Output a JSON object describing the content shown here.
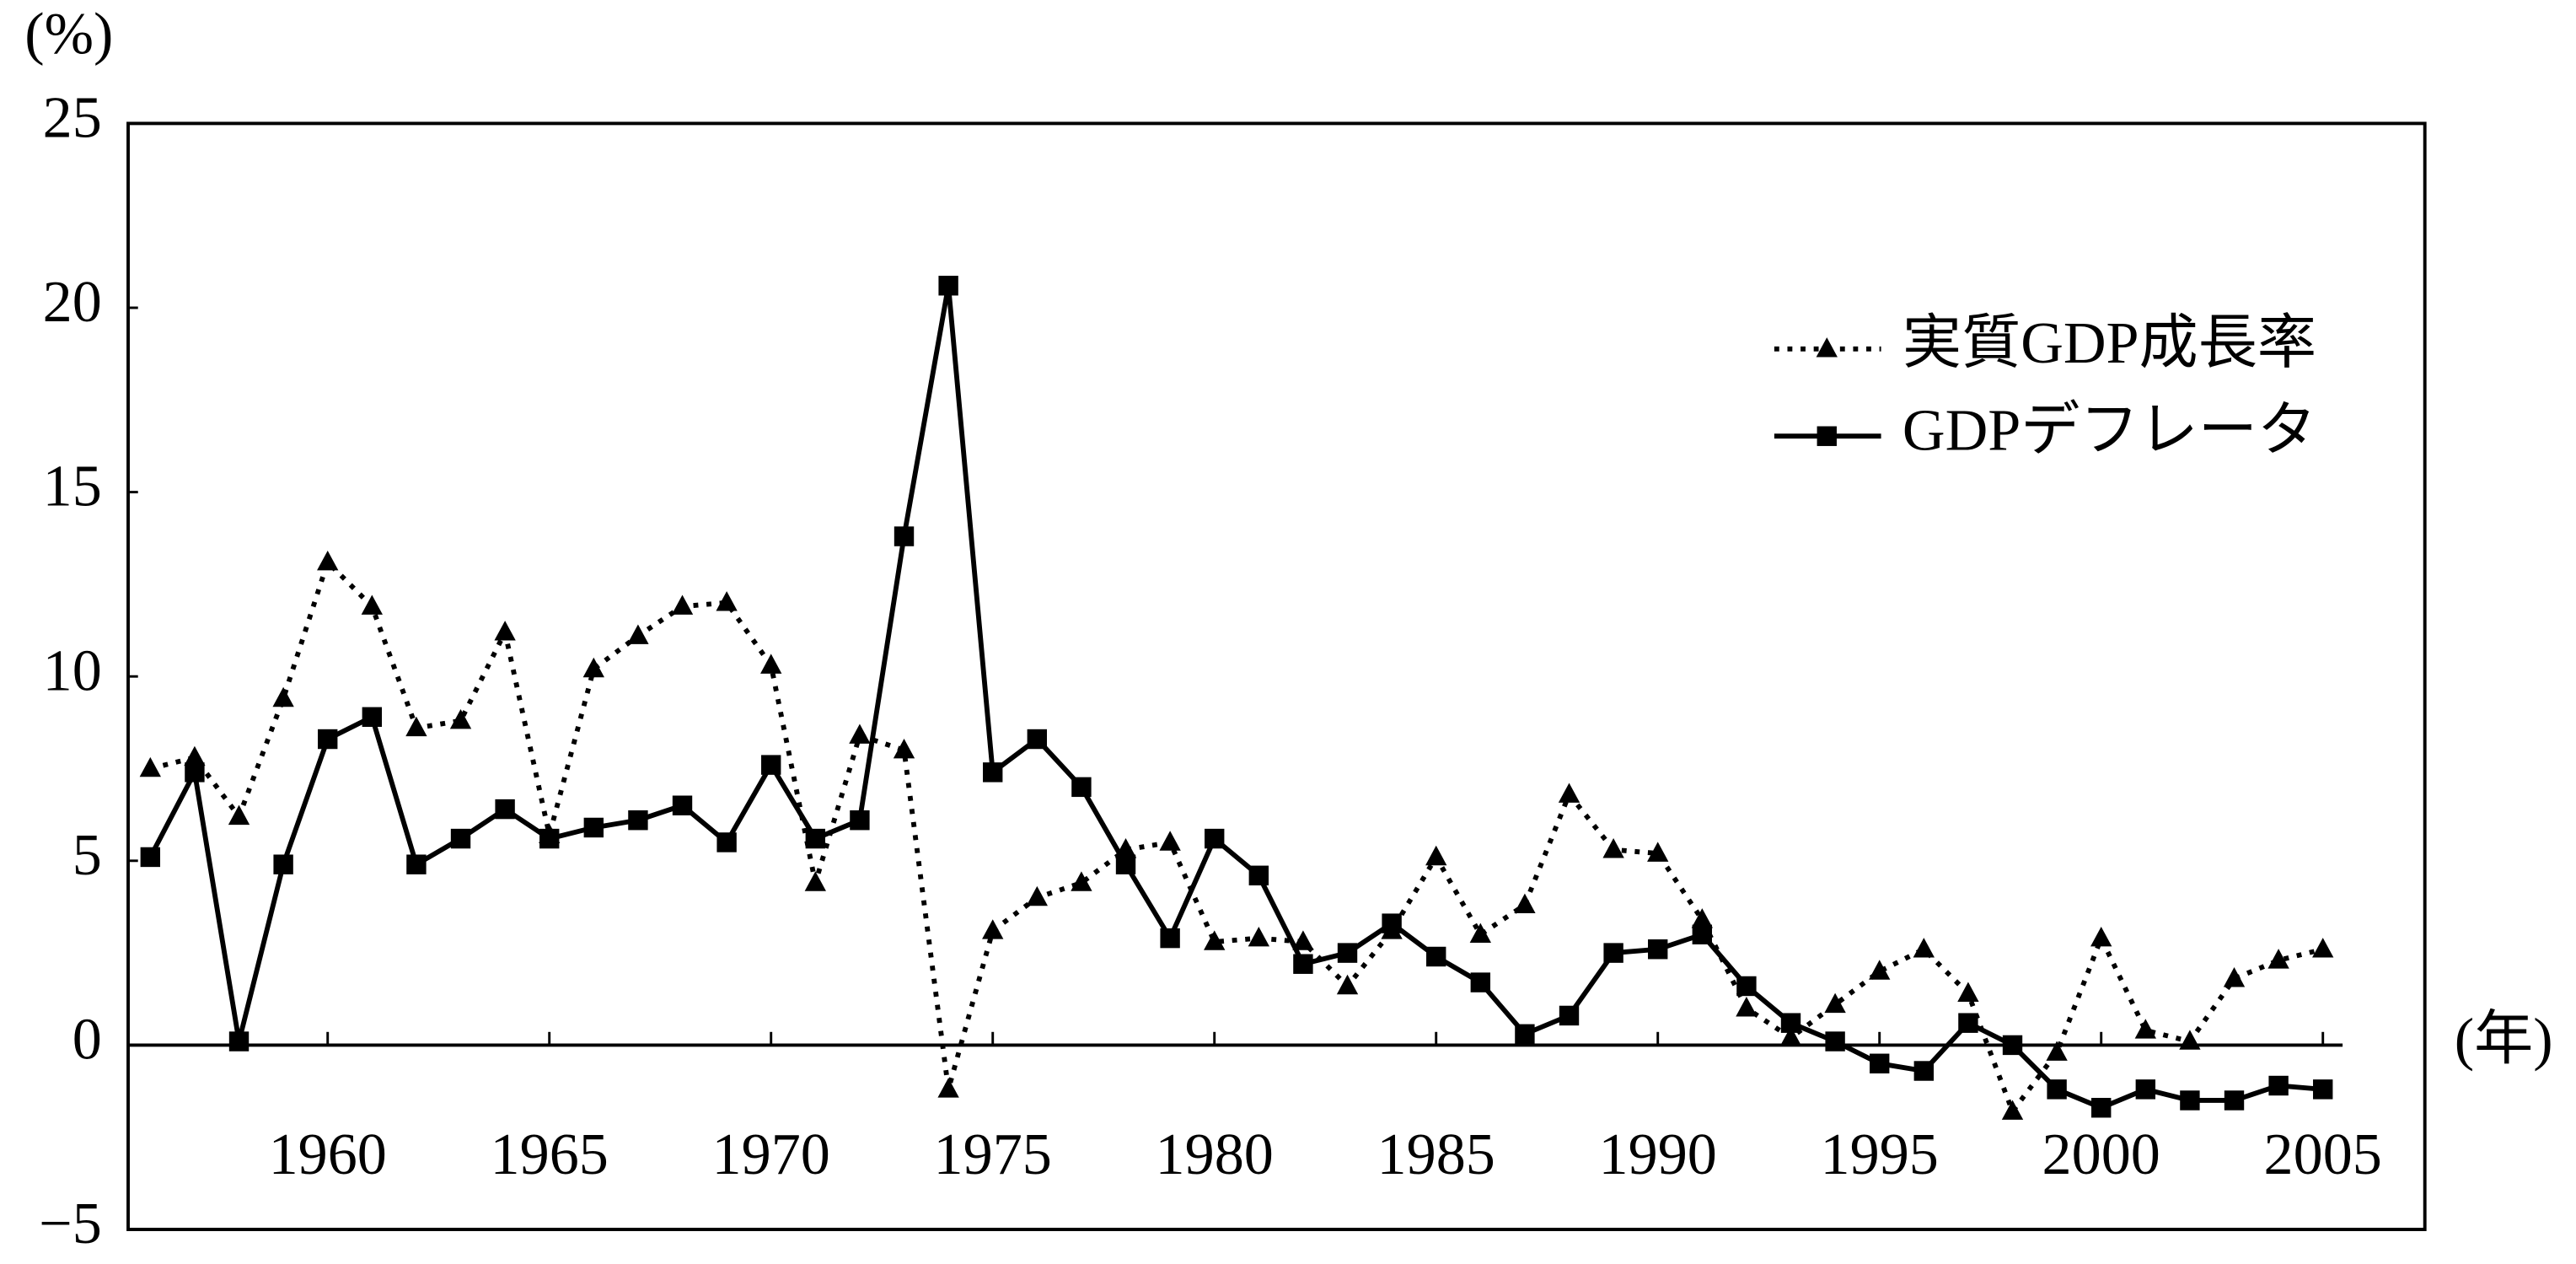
{
  "chart_data": {
    "type": "line",
    "y_unit_label": "(%)",
    "x_unit_label": "(年)",
    "x": [
      1956,
      1957,
      1958,
      1959,
      1960,
      1961,
      1962,
      1963,
      1964,
      1965,
      1966,
      1967,
      1968,
      1969,
      1970,
      1971,
      1972,
      1973,
      1974,
      1975,
      1976,
      1977,
      1978,
      1979,
      1980,
      1981,
      1982,
      1983,
      1984,
      1985,
      1986,
      1987,
      1988,
      1989,
      1990,
      1991,
      1992,
      1993,
      1994,
      1995,
      1996,
      1997,
      1998,
      1999,
      2000,
      2001,
      2002,
      2003,
      2004,
      2005
    ],
    "series": [
      {
        "name": "実質GDP成長率",
        "color": "#000000",
        "linestyle": "dotted",
        "marker": "triangle",
        "values": [
          7.5,
          7.8,
          6.2,
          9.4,
          13.1,
          11.9,
          8.6,
          8.8,
          11.2,
          5.7,
          10.2,
          11.1,
          11.9,
          12.0,
          10.3,
          4.4,
          8.4,
          8.0,
          -1.2,
          3.1,
          4.0,
          4.4,
          5.3,
          5.5,
          2.8,
          2.9,
          2.8,
          1.6,
          3.1,
          5.1,
          3.0,
          3.8,
          6.8,
          5.3,
          5.2,
          3.4,
          1.0,
          0.2,
          1.1,
          2.0,
          2.6,
          1.4,
          -1.8,
          -0.2,
          2.9,
          0.4,
          0.1,
          1.8,
          2.3,
          2.6
        ]
      },
      {
        "name": "GDPデフレータ",
        "color": "#000000",
        "linestyle": "solid",
        "marker": "square",
        "values": [
          5.1,
          7.4,
          0.1,
          4.9,
          8.3,
          8.9,
          4.9,
          5.6,
          6.4,
          5.6,
          5.9,
          6.1,
          6.5,
          5.5,
          7.6,
          5.6,
          6.1,
          13.8,
          20.6,
          7.4,
          8.3,
          7.0,
          4.9,
          2.9,
          5.6,
          4.6,
          2.2,
          2.5,
          3.3,
          2.4,
          1.7,
          0.3,
          0.8,
          2.5,
          2.6,
          3.0,
          1.6,
          0.6,
          0.1,
          -0.5,
          -0.7,
          0.6,
          0.0,
          -1.2,
          -1.7,
          -1.2,
          -1.5,
          -1.5,
          -1.1,
          -1.2
        ]
      }
    ],
    "xlim": [
      1955.5,
      2007.3
    ],
    "xticks": [
      1960,
      1965,
      1970,
      1975,
      1980,
      1985,
      1990,
      1995,
      2000,
      2005
    ],
    "ylim": [
      -5,
      25
    ],
    "yticks": [
      {
        "value": -5,
        "label": "−5"
      },
      0,
      5,
      10,
      15,
      20,
      25
    ],
    "grid": false,
    "legend": "upper right"
  }
}
